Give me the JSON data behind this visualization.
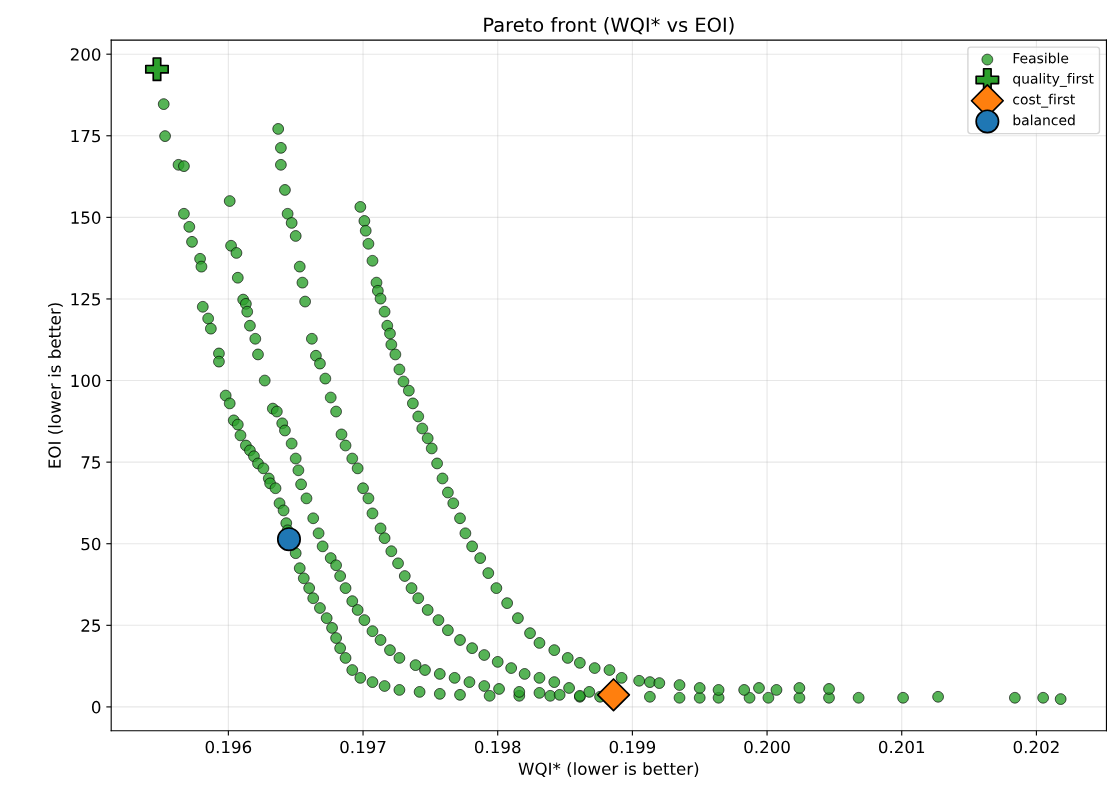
{
  "chart_data": {
    "type": "scatter",
    "title": "Pareto front (WQI* vs EOI)",
    "xlabel": "WQI* (lower is better)",
    "ylabel": "EOI (lower is better)",
    "xlim": [
      0.19513,
      0.20252
    ],
    "ylim": [
      -7.3,
      204.3
    ],
    "xticks": [
      0.196,
      0.197,
      0.198,
      0.199,
      {
        "value": 0.2,
        "label": "0.200"
      },
      0.201,
      0.202
    ],
    "yticks": [
      0,
      25,
      50,
      75,
      100,
      125,
      150,
      175,
      200
    ],
    "grid": true,
    "legend": "top right",
    "series": [
      {
        "name": "Feasible",
        "color": "#2ca02c",
        "marker": "circle",
        "x": [
          0.19552,
          0.19553,
          0.19563,
          0.19567,
          0.19567,
          0.19571,
          0.19573,
          0.19579,
          0.1958,
          0.19581,
          0.19585,
          0.19587,
          0.19593,
          0.19593,
          0.19598,
          0.19601,
          0.19604,
          0.19607,
          0.19609,
          0.19613,
          0.19616,
          0.19619,
          0.19622,
          0.19626,
          0.1963,
          0.19631,
          0.19635,
          0.19638,
          0.19641,
          0.19643,
          0.19644,
          0.1965,
          0.19653,
          0.19656,
          0.1966,
          0.19663,
          0.19668,
          0.19673,
          0.19677,
          0.1968,
          0.19683,
          0.19687,
          0.19692,
          0.19698,
          0.19707,
          0.19716,
          0.19727,
          0.19742,
          0.19757,
          0.19772,
          0.19794,
          0.19816,
          0.19839,
          0.19861,
          0.19876,
          0.19913,
          0.19935,
          0.1995,
          0.19964,
          0.19987,
          0.20001,
          0.20024,
          0.20046,
          0.20068,
          0.20101,
          0.20184,
          0.20205,
          0.20218,
          0.19601,
          0.19602,
          0.19606,
          0.19607,
          0.19611,
          0.19613,
          0.19614,
          0.19616,
          0.1962,
          0.19622,
          0.19627,
          0.19633,
          0.19636,
          0.1964,
          0.19642,
          0.19647,
          0.1965,
          0.19652,
          0.19654,
          0.19658,
          0.19663,
          0.19667,
          0.1967,
          0.19676,
          0.1968,
          0.19683,
          0.19687,
          0.19692,
          0.19696,
          0.19701,
          0.19707,
          0.19713,
          0.1972,
          0.19727,
          0.19739,
          0.19746,
          0.19757,
          0.19768,
          0.19779,
          0.1979,
          0.19801,
          0.19816,
          0.19831,
          0.19846,
          0.19861,
          0.19637,
          0.19639,
          0.19639,
          0.19642,
          0.19644,
          0.19647,
          0.1965,
          0.19653,
          0.19655,
          0.19657,
          0.19662,
          0.19665,
          0.19668,
          0.19672,
          0.19676,
          0.1968,
          0.19684,
          0.19687,
          0.19692,
          0.19696,
          0.197,
          0.19704,
          0.19707,
          0.19713,
          0.19716,
          0.19721,
          0.19726,
          0.19731,
          0.19736,
          0.19741,
          0.19748,
          0.19756,
          0.19763,
          0.19772,
          0.19781,
          0.1979,
          0.198,
          0.1981,
          0.1982,
          0.19831,
          0.19842,
          0.19853,
          0.19868,
          0.19698,
          0.19701,
          0.19702,
          0.19704,
          0.19707,
          0.1971,
          0.19711,
          0.19713,
          0.19716,
          0.19718,
          0.1972,
          0.19721,
          0.19724,
          0.19727,
          0.1973,
          0.19734,
          0.19737,
          0.19741,
          0.19744,
          0.19748,
          0.19751,
          0.19755,
          0.19759,
          0.19763,
          0.19767,
          0.19772,
          0.19776,
          0.19781,
          0.19787,
          0.19793,
          0.19799,
          0.19807,
          0.19815,
          0.19824,
          0.19831,
          0.19842,
          0.19852,
          0.19861,
          0.19872,
          0.19883,
          0.19892,
          0.19905,
          0.19913,
          0.1992,
          0.19935,
          0.1995,
          0.19964,
          0.19983,
          0.19994,
          0.20007,
          0.20024,
          0.20046,
          0.20127
        ],
        "values": [
          184.7,
          174.9,
          166.1,
          165.7,
          151.1,
          147.1,
          142.5,
          137.3,
          134.9,
          122.6,
          119.0,
          115.9,
          108.3,
          105.8,
          95.4,
          93.0,
          87.8,
          86.5,
          83.2,
          80.1,
          78.6,
          76.8,
          74.6,
          73.1,
          70.0,
          68.5,
          67.0,
          62.4,
          60.2,
          56.3,
          54.1,
          47.1,
          42.5,
          39.4,
          36.4,
          33.3,
          30.3,
          27.2,
          24.2,
          21.1,
          18.0,
          15.0,
          11.3,
          8.9,
          7.6,
          6.4,
          5.2,
          4.6,
          4.0,
          3.7,
          3.4,
          3.4,
          3.4,
          3.1,
          3.1,
          3.1,
          2.8,
          2.8,
          2.8,
          2.8,
          2.8,
          2.8,
          2.8,
          2.8,
          2.8,
          2.8,
          2.8,
          2.4,
          155.0,
          141.3,
          139.1,
          131.5,
          124.8,
          123.5,
          121.1,
          116.8,
          112.8,
          108.0,
          100.0,
          91.4,
          90.5,
          86.9,
          84.7,
          80.7,
          76.1,
          72.5,
          68.2,
          63.9,
          57.8,
          53.2,
          49.2,
          45.6,
          43.4,
          40.1,
          36.4,
          32.4,
          29.7,
          26.6,
          23.2,
          20.5,
          17.4,
          15.0,
          12.8,
          11.3,
          10.1,
          8.9,
          7.6,
          6.4,
          5.5,
          4.6,
          4.3,
          3.7,
          3.4,
          177.1,
          171.3,
          166.1,
          158.4,
          151.1,
          148.3,
          144.3,
          134.9,
          130.0,
          124.2,
          112.8,
          107.6,
          105.2,
          100.6,
          94.8,
          90.5,
          83.5,
          80.1,
          76.1,
          73.1,
          67.0,
          63.9,
          59.3,
          54.7,
          51.7,
          47.7,
          44.0,
          40.1,
          36.4,
          33.3,
          29.7,
          26.6,
          23.5,
          20.5,
          18.0,
          15.9,
          13.8,
          11.9,
          10.1,
          8.9,
          7.6,
          5.8,
          4.6,
          153.2,
          148.9,
          145.9,
          141.9,
          136.7,
          130.0,
          127.5,
          125.1,
          121.1,
          116.8,
          114.4,
          111.0,
          108.0,
          103.4,
          99.7,
          96.9,
          93.0,
          89.0,
          85.3,
          82.3,
          79.2,
          74.6,
          70.0,
          65.7,
          62.4,
          57.8,
          53.2,
          49.2,
          45.6,
          41.0,
          36.4,
          31.8,
          27.2,
          22.6,
          19.6,
          17.4,
          15.0,
          13.5,
          11.9,
          11.3,
          8.9,
          8.0,
          7.6,
          7.3,
          6.7,
          5.8,
          5.2,
          5.2,
          5.8,
          5.2,
          5.8,
          5.5,
          3.1
        ]
      },
      {
        "name": "quality_first",
        "color": "#2ca02c",
        "marker": "cross",
        "x": [
          0.19547
        ],
        "values": [
          195.4
        ]
      },
      {
        "name": "cost_first",
        "color": "#ff7f0e",
        "marker": "diamond",
        "x": [
          0.19886
        ],
        "values": [
          3.7
        ]
      },
      {
        "name": "balanced",
        "color": "#1f77b4",
        "marker": "circle",
        "x": [
          0.19645
        ],
        "values": [
          51.4
        ]
      }
    ]
  }
}
